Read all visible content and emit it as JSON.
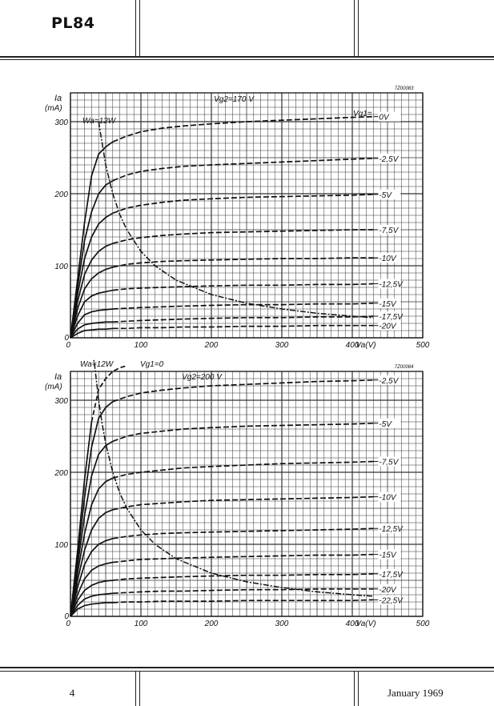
{
  "header": {
    "type_number": "PL84"
  },
  "footer": {
    "page_number": "4",
    "date": "January 1969"
  },
  "chart_data": [
    {
      "type": "line",
      "code": "7Z00083",
      "ylabel": "Ia",
      "ylabel_unit": "(mA)",
      "xlabel": "Va(V)",
      "xlim": [
        0,
        500
      ],
      "ylim": [
        0,
        340
      ],
      "xticks": [
        "0",
        "100",
        "200",
        "300",
        "400",
        "500"
      ],
      "yticks": [
        "0",
        "100",
        "200",
        "300"
      ],
      "grid": true,
      "condition": "Vg2=170 V",
      "param_label": "Vg1=",
      "dissipation_label": "Wa=12W",
      "series": [
        {
          "name": "0V",
          "x": [
            0,
            10,
            20,
            30,
            40,
            50,
            60,
            80,
            100,
            130,
            160,
            200,
            250,
            300,
            350,
            400,
            430
          ],
          "y": [
            0,
            80,
            160,
            225,
            255,
            265,
            272,
            280,
            286,
            291,
            294,
            297,
            300,
            302,
            304,
            306,
            307
          ]
        },
        {
          "name": "-2,5V",
          "x": [
            0,
            10,
            20,
            30,
            40,
            50,
            60,
            80,
            100,
            130,
            160,
            200,
            250,
            300,
            350,
            400,
            430
          ],
          "y": [
            0,
            70,
            135,
            175,
            200,
            212,
            218,
            226,
            231,
            235,
            238,
            240,
            242,
            244,
            246,
            248,
            249
          ]
        },
        {
          "name": "-5V",
          "x": [
            0,
            10,
            20,
            30,
            40,
            50,
            60,
            80,
            100,
            130,
            160,
            200,
            250,
            300,
            350,
            400,
            430
          ],
          "y": [
            0,
            60,
            110,
            140,
            158,
            167,
            173,
            180,
            184,
            188,
            191,
            193,
            195,
            196,
            197,
            198,
            199
          ]
        },
        {
          "name": "-7,5V",
          "x": [
            0,
            10,
            20,
            30,
            40,
            50,
            60,
            80,
            100,
            130,
            160,
            200,
            250,
            300,
            350,
            400,
            430
          ],
          "y": [
            0,
            50,
            88,
            108,
            120,
            127,
            131,
            136,
            139,
            142,
            144,
            146,
            147,
            148,
            149,
            150,
            150
          ]
        },
        {
          "name": "-10V",
          "x": [
            0,
            10,
            20,
            30,
            40,
            50,
            60,
            80,
            100,
            130,
            160,
            200,
            250,
            300,
            350,
            400,
            430
          ],
          "y": [
            0,
            40,
            68,
            82,
            90,
            95,
            98,
            102,
            104,
            106,
            107,
            108,
            109,
            110,
            110,
            111,
            111
          ]
        },
        {
          "name": "-12,5V",
          "x": [
            0,
            10,
            20,
            30,
            40,
            50,
            60,
            80,
            100,
            130,
            160,
            200,
            250,
            300,
            350,
            400,
            430
          ],
          "y": [
            0,
            30,
            50,
            58,
            62,
            64,
            66,
            68,
            69,
            70,
            71,
            72,
            73,
            73,
            74,
            74,
            75
          ]
        },
        {
          "name": "-15V",
          "x": [
            0,
            10,
            20,
            30,
            40,
            50,
            60,
            80,
            100,
            130,
            160,
            200,
            250,
            300,
            350,
            400,
            430
          ],
          "y": [
            0,
            20,
            32,
            36,
            38,
            39,
            40,
            41,
            42,
            43,
            44,
            45,
            46,
            46,
            47,
            47,
            48
          ]
        },
        {
          "name": "-17,5V",
          "x": [
            0,
            10,
            20,
            30,
            40,
            50,
            60,
            80,
            100,
            130,
            160,
            200,
            250,
            300,
            350,
            400,
            430
          ],
          "y": [
            0,
            12,
            18,
            20,
            21,
            22,
            22,
            23,
            24,
            25,
            26,
            27,
            28,
            28,
            29,
            29,
            30
          ]
        },
        {
          "name": "-20V",
          "x": [
            0,
            10,
            20,
            30,
            40,
            50,
            60,
            80,
            100,
            130,
            160,
            200,
            250,
            300,
            350,
            400,
            430
          ],
          "y": [
            0,
            6,
            10,
            11,
            12,
            12,
            13,
            13,
            14,
            14,
            15,
            15,
            16,
            16,
            17,
            17,
            17
          ]
        }
      ],
      "dissipation_curve": {
        "x": [
          40,
          50,
          60,
          70,
          80,
          100,
          120,
          150,
          200,
          250,
          300,
          350,
          400,
          430
        ],
        "y": [
          300,
          240,
          200,
          171,
          150,
          120,
          100,
          80,
          60,
          48,
          40,
          34,
          30,
          28
        ]
      }
    },
    {
      "type": "line",
      "code": "7Z00084",
      "ylabel": "Ia",
      "ylabel_unit": "(mA)",
      "xlabel": "Va(V)",
      "xlim": [
        0,
        500
      ],
      "ylim": [
        0,
        340
      ],
      "xticks": [
        "0",
        "100",
        "200",
        "300",
        "400",
        "500"
      ],
      "yticks": [
        "0",
        "100",
        "200",
        "300"
      ],
      "grid": true,
      "condition": "Vg2=200 V",
      "param_label": "Vg1=0",
      "dissipation_label": "Wa=12W",
      "series": [
        {
          "name": "Vg1=0",
          "x": [
            0,
            10,
            20,
            30,
            40,
            50,
            60,
            70,
            80
          ],
          "y": [
            0,
            90,
            190,
            270,
            315,
            330,
            340,
            345,
            348
          ]
        },
        {
          "name": "-2,5V",
          "x": [
            0,
            10,
            20,
            30,
            40,
            50,
            60,
            80,
            100,
            130,
            160,
            200,
            250,
            300,
            350,
            400,
            430
          ],
          "y": [
            0,
            80,
            165,
            235,
            275,
            290,
            298,
            305,
            310,
            314,
            317,
            320,
            322,
            324,
            326,
            327,
            328
          ]
        },
        {
          "name": "-5V",
          "x": [
            0,
            10,
            20,
            30,
            40,
            50,
            60,
            80,
            100,
            130,
            160,
            200,
            250,
            300,
            350,
            400,
            430
          ],
          "y": [
            0,
            70,
            140,
            195,
            225,
            237,
            243,
            250,
            254,
            257,
            260,
            262,
            264,
            265,
            266,
            267,
            268
          ]
        },
        {
          "name": "-7,5V",
          "x": [
            0,
            10,
            20,
            30,
            40,
            50,
            60,
            80,
            100,
            130,
            160,
            200,
            250,
            300,
            350,
            400,
            430
          ],
          "y": [
            0,
            60,
            115,
            155,
            177,
            187,
            192,
            197,
            200,
            203,
            206,
            208,
            210,
            212,
            213,
            214,
            215
          ]
        },
        {
          "name": "-10V",
          "x": [
            0,
            10,
            20,
            30,
            40,
            50,
            60,
            80,
            100,
            130,
            160,
            200,
            250,
            300,
            350,
            400,
            430
          ],
          "y": [
            0,
            50,
            92,
            120,
            136,
            144,
            148,
            152,
            155,
            157,
            159,
            161,
            162,
            163,
            164,
            165,
            166
          ]
        },
        {
          "name": "-12,5V",
          "x": [
            0,
            10,
            20,
            30,
            40,
            50,
            60,
            80,
            100,
            130,
            160,
            200,
            250,
            300,
            350,
            400,
            430
          ],
          "y": [
            0,
            40,
            72,
            90,
            100,
            105,
            108,
            111,
            113,
            115,
            116,
            117,
            118,
            119,
            120,
            121,
            122
          ]
        },
        {
          "name": "-15V",
          "x": [
            0,
            10,
            20,
            30,
            40,
            50,
            60,
            80,
            100,
            130,
            160,
            200,
            250,
            300,
            350,
            400,
            430
          ],
          "y": [
            0,
            30,
            52,
            64,
            70,
            73,
            75,
            77,
            79,
            80,
            81,
            82,
            83,
            84,
            85,
            85,
            86
          ]
        },
        {
          "name": "-17,5V",
          "x": [
            0,
            10,
            20,
            30,
            40,
            50,
            60,
            80,
            100,
            130,
            160,
            200,
            250,
            300,
            350,
            400,
            430
          ],
          "y": [
            0,
            22,
            36,
            43,
            47,
            49,
            50,
            52,
            53,
            54,
            55,
            56,
            57,
            57,
            58,
            58,
            59
          ]
        },
        {
          "name": "-20V",
          "x": [
            0,
            10,
            20,
            30,
            40,
            50,
            60,
            80,
            100,
            130,
            160,
            200,
            250,
            300,
            350,
            400,
            430
          ],
          "y": [
            0,
            15,
            24,
            28,
            30,
            31,
            32,
            33,
            34,
            35,
            35,
            36,
            37,
            37,
            38,
            38,
            38
          ]
        },
        {
          "name": "-22,5V",
          "x": [
            0,
            10,
            20,
            30,
            40,
            50,
            60,
            80,
            100,
            130,
            160,
            200,
            250,
            300,
            350,
            400,
            430
          ],
          "y": [
            0,
            10,
            15,
            17,
            18,
            19,
            19,
            20,
            20,
            21,
            21,
            21,
            22,
            22,
            22,
            22,
            23
          ]
        }
      ],
      "dissipation_curve": {
        "x": [
          30,
          35,
          40,
          45,
          50,
          60,
          70,
          80,
          100,
          120,
          150,
          200,
          250,
          300,
          350,
          400,
          430
        ],
        "y": [
          400,
          343,
          300,
          267,
          240,
          200,
          171,
          150,
          120,
          100,
          80,
          60,
          48,
          40,
          34,
          30,
          28
        ]
      }
    }
  ]
}
